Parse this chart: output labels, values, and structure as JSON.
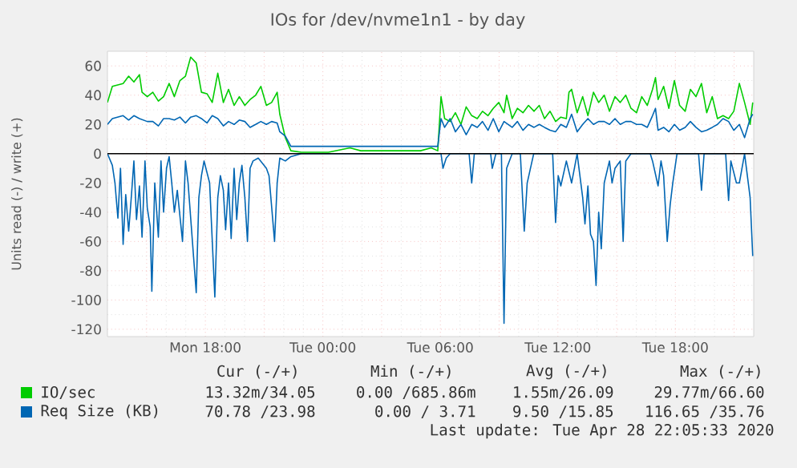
{
  "chart_data": {
    "type": "line",
    "title": "IOs for /dev/nvme1n1 - by day",
    "ylabel": "Units read (-) / write (+)",
    "xlim": [
      "2020-04-27T13:00",
      "2020-04-28T22:00"
    ],
    "ylim": [
      -125,
      70
    ],
    "xticks": [
      {
        "value": "2020-04-27T15:00",
        "label": null
      },
      {
        "value": "2020-04-27T18:00",
        "label": "Mon 18:00"
      },
      {
        "value": "2020-04-27T21:00",
        "label": null
      },
      {
        "value": "2020-04-28T00:00",
        "label": "Tue 00:00"
      },
      {
        "value": "2020-04-28T03:00",
        "label": null
      },
      {
        "value": "2020-04-28T06:00",
        "label": "Tue 06:00"
      },
      {
        "value": "2020-04-28T09:00",
        "label": null
      },
      {
        "value": "2020-04-28T12:00",
        "label": "Tue 12:00"
      },
      {
        "value": "2020-04-28T15:00",
        "label": null
      },
      {
        "value": "2020-04-28T18:00",
        "label": "Tue 18:00"
      },
      {
        "value": "2020-04-28T21:00",
        "label": null
      }
    ],
    "yticks": [
      -120,
      -100,
      -80,
      -60,
      -40,
      -20,
      0,
      20,
      40,
      60
    ],
    "grid": true,
    "legend": "bottom",
    "marker": "none",
    "line_style": "solid",
    "ref_lines": [
      {
        "axis": "y",
        "value": 0,
        "color": "#000000"
      }
    ],
    "series": [
      {
        "name": "IO/sec",
        "color": "#00cc00",
        "x": [
          "2020-04-27T13:00",
          "2020-04-27T13:15",
          "2020-04-27T13:48",
          "2020-04-27T14:05",
          "2020-04-27T14:21",
          "2020-04-27T14:38",
          "2020-04-27T14:46",
          "2020-04-27T15:02",
          "2020-04-27T15:19",
          "2020-04-27T15:36",
          "2020-04-27T15:52",
          "2020-04-27T16:09",
          "2020-04-27T16:25",
          "2020-04-27T16:42",
          "2020-04-27T16:59",
          "2020-04-27T17:15",
          "2020-04-27T17:32",
          "2020-04-27T17:48",
          "2020-04-27T18:05",
          "2020-04-27T18:21",
          "2020-04-27T18:38",
          "2020-04-27T18:55",
          "2020-04-27T19:11",
          "2020-04-27T19:28",
          "2020-04-27T19:44",
          "2020-04-27T20:01",
          "2020-04-27T20:17",
          "2020-04-27T20:34",
          "2020-04-27T20:50",
          "2020-04-27T21:07",
          "2020-04-27T21:23",
          "2020-04-27T21:40",
          "2020-04-27T21:48",
          "2020-04-27T22:05",
          "2020-04-27T22:22",
          "2020-04-27T22:54",
          "2020-04-28T00:17",
          "2020-04-28T01:23",
          "2020-04-28T01:56",
          "2020-04-28T02:46",
          "2020-04-28T04:59",
          "2020-04-28T05:32",
          "2020-04-28T05:52",
          "2020-04-28T06:02",
          "2020-04-28T06:13",
          "2020-04-28T06:30",
          "2020-04-28T06:46",
          "2020-04-28T07:03",
          "2020-04-28T07:19",
          "2020-04-28T07:36",
          "2020-04-28T07:53",
          "2020-04-28T08:09",
          "2020-04-28T08:26",
          "2020-04-28T08:42",
          "2020-04-28T08:59",
          "2020-04-28T09:15",
          "2020-04-28T09:23",
          "2020-04-28T09:40",
          "2020-04-28T09:56",
          "2020-04-28T10:13",
          "2020-04-28T10:30",
          "2020-04-28T10:47",
          "2020-04-28T11:03",
          "2020-04-28T11:19",
          "2020-04-28T11:36",
          "2020-04-28T11:53",
          "2020-04-28T12:09",
          "2020-04-28T12:26",
          "2020-04-28T12:34",
          "2020-04-28T12:42",
          "2020-04-28T12:59",
          "2020-04-28T13:16",
          "2020-04-28T13:32",
          "2020-04-28T13:49",
          "2020-04-28T14:05",
          "2020-04-28T14:22",
          "2020-04-28T14:38",
          "2020-04-28T14:55",
          "2020-04-28T15:11",
          "2020-04-28T15:28",
          "2020-04-28T15:44",
          "2020-04-28T16:01",
          "2020-04-28T16:17",
          "2020-04-28T16:34",
          "2020-04-28T16:50",
          "2020-04-28T16:59",
          "2020-04-28T17:07",
          "2020-04-28T17:24",
          "2020-04-28T17:40",
          "2020-04-28T17:57",
          "2020-04-28T18:13",
          "2020-04-28T18:30",
          "2020-04-28T18:46",
          "2020-04-28T19:03",
          "2020-04-28T19:20",
          "2020-04-28T19:36",
          "2020-04-28T19:53",
          "2020-04-28T20:09",
          "2020-04-28T20:26",
          "2020-04-28T20:43",
          "2020-04-28T20:59",
          "2020-04-28T21:16",
          "2020-04-28T21:32",
          "2020-04-28T21:49",
          "2020-04-28T21:57"
        ],
        "values": [
          35,
          46,
          48,
          53,
          49,
          54,
          42,
          39,
          42,
          36,
          39,
          48,
          39,
          50,
          53,
          66,
          62,
          42,
          41,
          35,
          55,
          35,
          44,
          33,
          39,
          33,
          37,
          40,
          46,
          33,
          35,
          42,
          27,
          11,
          2,
          1,
          1,
          4,
          2,
          2,
          2,
          4,
          2,
          39,
          24,
          22,
          28,
          20,
          32,
          26,
          24,
          29,
          26,
          31,
          35,
          28,
          40,
          24,
          31,
          28,
          33,
          29,
          33,
          24,
          29,
          22,
          25,
          24,
          42,
          44,
          28,
          39,
          26,
          42,
          35,
          40,
          29,
          39,
          35,
          40,
          31,
          28,
          39,
          33,
          44,
          52,
          37,
          46,
          31,
          50,
          33,
          29,
          44,
          39,
          48,
          28,
          39,
          24,
          26,
          24,
          29,
          48,
          35,
          20,
          35
        ]
      },
      {
        "name": "Req Size (KB)",
        "color": "#0066b3",
        "x": [
          "2020-04-27T13:00",
          "2020-04-27T13:15",
          "2020-04-27T13:48",
          "2020-04-27T14:05",
          "2020-04-27T14:21",
          "2020-04-27T14:38",
          "2020-04-27T15:02",
          "2020-04-27T15:19",
          "2020-04-27T15:36",
          "2020-04-27T15:52",
          "2020-04-27T16:09",
          "2020-04-27T16:25",
          "2020-04-27T16:42",
          "2020-04-27T16:59",
          "2020-04-27T17:15",
          "2020-04-27T17:32",
          "2020-04-27T17:48",
          "2020-04-27T18:05",
          "2020-04-27T18:21",
          "2020-04-27T18:38",
          "2020-04-27T18:55",
          "2020-04-27T19:11",
          "2020-04-27T19:28",
          "2020-04-27T19:44",
          "2020-04-27T20:01",
          "2020-04-27T20:17",
          "2020-04-27T20:34",
          "2020-04-27T20:50",
          "2020-04-27T21:07",
          "2020-04-27T21:23",
          "2020-04-27T21:40",
          "2020-04-27T21:48",
          "2020-04-27T22:05",
          "2020-04-27T22:22",
          "2020-04-27T22:54",
          "2020-04-28T00:17",
          "2020-04-28T01:23",
          "2020-04-28T02:46",
          "2020-04-28T04:59",
          "2020-04-28T05:52",
          "2020-04-28T06:02",
          "2020-04-28T06:13",
          "2020-04-28T06:30",
          "2020-04-28T06:46",
          "2020-04-28T07:03",
          "2020-04-28T07:19",
          "2020-04-28T07:36",
          "2020-04-28T07:53",
          "2020-04-28T08:09",
          "2020-04-28T08:26",
          "2020-04-28T08:42",
          "2020-04-28T08:59",
          "2020-04-28T09:15",
          "2020-04-28T09:40",
          "2020-04-28T09:56",
          "2020-04-28T10:13",
          "2020-04-28T10:30",
          "2020-04-28T10:47",
          "2020-04-28T11:03",
          "2020-04-28T11:19",
          "2020-04-28T11:36",
          "2020-04-28T11:53",
          "2020-04-28T12:09",
          "2020-04-28T12:26",
          "2020-04-28T12:42",
          "2020-04-28T12:59",
          "2020-04-28T13:16",
          "2020-04-28T13:32",
          "2020-04-28T13:49",
          "2020-04-28T14:05",
          "2020-04-28T14:22",
          "2020-04-28T14:38",
          "2020-04-28T14:55",
          "2020-04-28T15:11",
          "2020-04-28T15:28",
          "2020-04-28T15:44",
          "2020-04-28T16:01",
          "2020-04-28T16:17",
          "2020-04-28T16:34",
          "2020-04-28T16:50",
          "2020-04-28T16:59",
          "2020-04-28T17:07",
          "2020-04-28T17:24",
          "2020-04-28T17:40",
          "2020-04-28T17:57",
          "2020-04-28T18:13",
          "2020-04-28T18:30",
          "2020-04-28T18:46",
          "2020-04-28T19:03",
          "2020-04-28T19:20",
          "2020-04-28T19:36",
          "2020-04-28T19:53",
          "2020-04-28T20:09",
          "2020-04-28T20:26",
          "2020-04-28T20:43",
          "2020-04-28T20:59",
          "2020-04-28T21:16",
          "2020-04-28T21:32",
          "2020-04-28T21:49",
          "2020-04-28T21:57"
        ],
        "values": [
          20,
          24,
          26,
          23,
          26,
          24,
          22,
          22,
          19,
          24,
          24,
          23,
          25,
          21,
          25,
          26,
          24,
          21,
          26,
          24,
          19,
          22,
          20,
          23,
          22,
          18,
          20,
          22,
          20,
          22,
          21,
          15,
          12,
          5,
          5,
          5,
          5,
          5,
          5,
          5,
          24,
          18,
          24,
          15,
          20,
          13,
          20,
          18,
          22,
          16,
          24,
          15,
          22,
          18,
          22,
          16,
          20,
          18,
          20,
          18,
          16,
          15,
          20,
          18,
          27,
          15,
          20,
          24,
          20,
          22,
          22,
          20,
          24,
          20,
          22,
          22,
          20,
          20,
          18,
          26,
          31,
          16,
          18,
          15,
          20,
          16,
          18,
          22,
          18,
          15,
          16,
          18,
          20,
          24,
          22,
          16,
          20,
          11,
          24,
          27
        ]
      },
      {
        "color": "#0066b3",
        "x": [
          "2020-04-27T13:00",
          "2020-04-27T13:15",
          "2020-04-27T13:23",
          "2020-04-27T13:32",
          "2020-04-27T13:40",
          "2020-04-27T13:48",
          "2020-04-27T13:56",
          "2020-04-27T14:05",
          "2020-04-27T14:13",
          "2020-04-27T14:21",
          "2020-04-27T14:29",
          "2020-04-27T14:38",
          "2020-04-27T14:46",
          "2020-04-27T14:55",
          "2020-04-27T15:02",
          "2020-04-27T15:11",
          "2020-04-27T15:16",
          "2020-04-27T15:25",
          "2020-04-27T15:36",
          "2020-04-27T15:44",
          "2020-04-27T15:52",
          "2020-04-27T16:01",
          "2020-04-27T16:09",
          "2020-04-27T16:17",
          "2020-04-27T16:25",
          "2020-04-27T16:34",
          "2020-04-27T16:50",
          "2020-04-27T16:59",
          "2020-04-27T17:07",
          "2020-04-27T17:32",
          "2020-04-27T17:40",
          "2020-04-27T17:48",
          "2020-04-27T17:56",
          "2020-04-27T18:13",
          "2020-04-27T18:29",
          "2020-04-27T18:38",
          "2020-04-27T18:46",
          "2020-04-27T18:55",
          "2020-04-27T19:02",
          "2020-04-27T19:11",
          "2020-04-27T19:19",
          "2020-04-27T19:28",
          "2020-04-27T19:36",
          "2020-04-27T19:44",
          "2020-04-27T19:52",
          "2020-04-27T20:01",
          "2020-04-27T20:09",
          "2020-04-27T20:17",
          "2020-04-27T20:26",
          "2020-04-27T20:42",
          "2020-04-27T21:07",
          "2020-04-27T21:15",
          "2020-04-27T21:32",
          "2020-04-27T21:40",
          "2020-04-27T21:48",
          "2020-04-27T22:05",
          "2020-04-27T22:22",
          "2020-04-27T22:54",
          "2020-04-28T04:09",
          "2020-04-28T06:02",
          "2020-04-28T06:08",
          "2020-04-28T06:18",
          "2020-04-28T06:30",
          "2020-04-28T07:28",
          "2020-04-28T07:36",
          "2020-04-28T07:44",
          "2020-04-28T08:34",
          "2020-04-28T08:39",
          "2020-04-28T08:50",
          "2020-04-28T09:07",
          "2020-04-28T09:15",
          "2020-04-28T09:23",
          "2020-04-28T09:40",
          "2020-04-28T10:05",
          "2020-04-28T10:17",
          "2020-04-28T10:26",
          "2020-04-28T10:38",
          "2020-04-28T10:46",
          "2020-04-28T11:44",
          "2020-04-28T11:53",
          "2020-04-28T12:01",
          "2020-04-28T12:09",
          "2020-04-28T12:26",
          "2020-04-28T12:42",
          "2020-04-28T12:59",
          "2020-04-28T13:16",
          "2020-04-28T13:23",
          "2020-04-28T13:32",
          "2020-04-28T13:40",
          "2020-04-28T13:49",
          "2020-04-28T13:57",
          "2020-04-28T14:05",
          "2020-04-28T14:13",
          "2020-04-28T14:22",
          "2020-04-28T14:38",
          "2020-04-28T14:46",
          "2020-04-28T14:55",
          "2020-04-28T15:11",
          "2020-04-28T15:20",
          "2020-04-28T15:28",
          "2020-04-28T15:44",
          "2020-04-28T16:43",
          "2020-04-28T16:50",
          "2020-04-28T17:07",
          "2020-04-28T17:16",
          "2020-04-28T17:24",
          "2020-04-28T17:35",
          "2020-04-28T17:44",
          "2020-04-28T17:52",
          "2020-04-28T18:05",
          "2020-04-28T19:11",
          "2020-04-28T19:20",
          "2020-04-28T19:28",
          "2020-04-28T20:34",
          "2020-04-28T20:43",
          "2020-04-28T20:50",
          "2020-04-28T21:07",
          "2020-04-28T21:16",
          "2020-04-28T21:32",
          "2020-04-28T21:49",
          "2020-04-28T21:57"
        ],
        "values": [
          0,
          -8,
          -20,
          -44,
          -10,
          -62,
          -28,
          -53,
          -30,
          -5,
          -45,
          -22,
          -57,
          -5,
          -37,
          -50,
          -94,
          -20,
          -57,
          -5,
          -40,
          -10,
          -2,
          -20,
          -40,
          -25,
          -60,
          -5,
          -20,
          -95,
          -30,
          -15,
          -5,
          -20,
          -98,
          -30,
          -15,
          -25,
          -52,
          -20,
          -58,
          -10,
          -45,
          -20,
          -8,
          -30,
          -60,
          -10,
          -5,
          -3,
          -10,
          -15,
          -60,
          -20,
          -3,
          -5,
          -2,
          0,
          0,
          0,
          -10,
          -3,
          0,
          0,
          -20,
          0,
          0,
          -10,
          0,
          0,
          -116,
          -10,
          0,
          0,
          -53,
          -20,
          -8,
          0,
          0,
          -47,
          -15,
          -22,
          -5,
          -20,
          0,
          -30,
          -48,
          -22,
          -55,
          -60,
          -90,
          -40,
          -65,
          -20,
          -5,
          -20,
          -10,
          -5,
          -60,
          -5,
          0,
          0,
          -5,
          -22,
          -5,
          -15,
          -60,
          -35,
          -20,
          0,
          0,
          -25,
          0,
          0,
          -32,
          -5,
          -20,
          -20,
          0,
          -30,
          -70
        ]
      }
    ],
    "annotations": [
      "Cur (-/+)",
      "Min (-/+)",
      "Avg (-/+)",
      "Max (-/+)",
      "13.32m/34.05",
      "0.00 /685.86m",
      "1.55m/26.09",
      "29.77m/66.60",
      "70.78 /23.98",
      "0.00 / 3.71",
      "9.50 /15.85",
      "116.65 /35.76",
      "Last update: Tue Apr 28 22:05:33 2020"
    ]
  }
}
